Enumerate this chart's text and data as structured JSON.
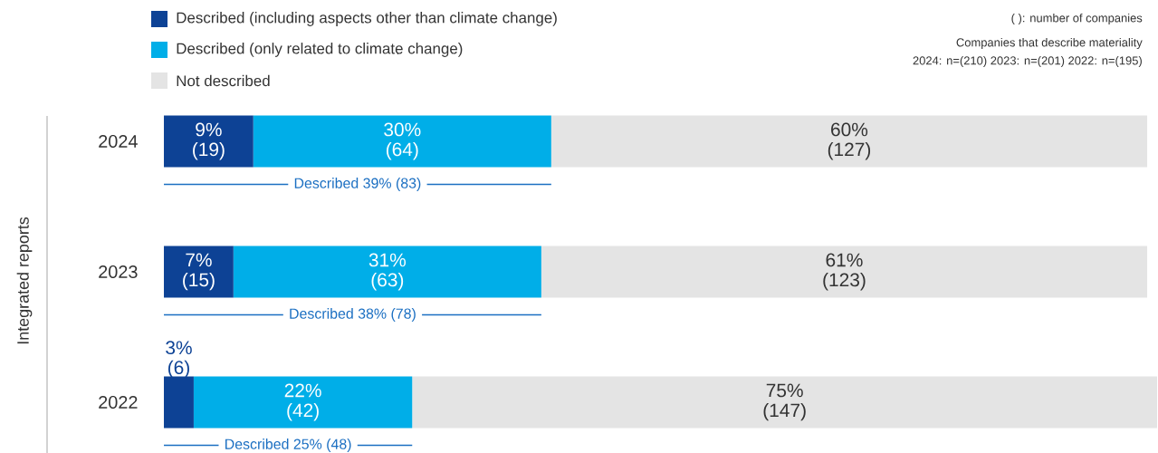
{
  "chart_data": {
    "type": "bar",
    "orientation": "horizontal",
    "stacked": true,
    "ylabel": "Integrated reports",
    "categories": [
      "2024",
      "2023",
      "2022"
    ],
    "series": [
      {
        "name": "Described (including aspects other than climate change)",
        "color": "#0d4295",
        "values": [
          9,
          7,
          3
        ],
        "value_labels": [
          "9% (19)",
          "7% (15)",
          "3% (6)"
        ]
      },
      {
        "name": "Described (only related to climate change)",
        "color": "#00aee8",
        "values": [
          30,
          31,
          22
        ],
        "value_labels": [
          "30% (64)",
          "31% (63)",
          "22% (42)"
        ]
      },
      {
        "name": "Not described",
        "color": "#e4e4e4",
        "values": [
          60,
          61,
          75
        ],
        "value_labels": [
          "60% (127)",
          "61% (123)",
          "75% (147)"
        ]
      }
    ],
    "legend": "top left",
    "annotations": [
      "( ): number of companies",
      "Companies that describe materiality",
      "2024: n=(210) 2023: n=(201) 2022: n=(195)",
      "Described 39% (83)",
      "Described 38% (78)",
      "Described 25% (48)"
    ]
  }
}
